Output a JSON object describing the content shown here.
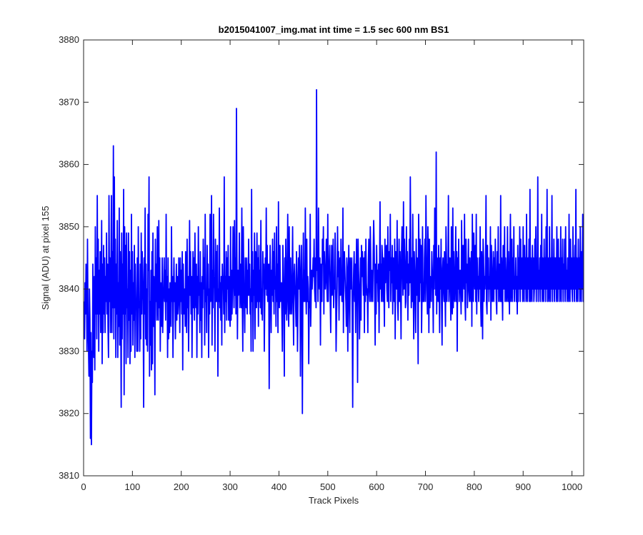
{
  "chart_data": {
    "type": "line",
    "title": "b2015041007_img.mat int time = 1.5 sec  600 nm BS1",
    "xlabel": "Track Pixels",
    "ylabel": "Signal (ADU) at pixel 155",
    "xlim": [
      0,
      1024
    ],
    "ylim": [
      3810,
      3880
    ],
    "xticks": [
      0,
      100,
      200,
      300,
      400,
      500,
      600,
      700,
      800,
      900,
      1000
    ],
    "yticks": [
      3810,
      3820,
      3830,
      3840,
      3850,
      3860,
      3870,
      3880
    ],
    "grid": false,
    "line_color": "#0000ff",
    "series": [
      {
        "x_start": 1,
        "x_step": 1,
        "values": [
          3838,
          3832,
          3841,
          3836,
          3844,
          3839,
          3830,
          3848,
          3835,
          3831,
          3826,
          3840,
          3835,
          3816,
          3833,
          3815,
          3830,
          3825,
          3844,
          3835,
          3829,
          3842,
          3827,
          3850,
          3836,
          3845,
          3832,
          3855,
          3836,
          3848,
          3830,
          3843,
          3836,
          3846,
          3833,
          3840,
          3851,
          3828,
          3844,
          3833,
          3847,
          3836,
          3845,
          3833,
          3842,
          3838,
          3849,
          3836,
          3844,
          3834,
          3829,
          3855,
          3838,
          3845,
          3833,
          3842,
          3855,
          3833,
          3846,
          3837,
          3863,
          3832,
          3858,
          3837,
          3848,
          3829,
          3844,
          3836,
          3851,
          3829,
          3841,
          3834,
          3853,
          3831,
          3846,
          3837,
          3821,
          3849,
          3832,
          3844,
          3836,
          3856,
          3823,
          3850,
          3836,
          3847,
          3828,
          3849,
          3837,
          3840,
          3829,
          3849,
          3835,
          3846,
          3828,
          3843,
          3830,
          3852,
          3836,
          3846,
          3831,
          3841,
          3835,
          3847,
          3829,
          3844,
          3838,
          3838,
          3830,
          3845,
          3830,
          3850,
          3837,
          3838,
          3830,
          3844,
          3832,
          3849,
          3836,
          3846,
          3842,
          3838,
          3821,
          3845,
          3836,
          3853,
          3832,
          3844,
          3831,
          3840,
          3830,
          3852,
          3843,
          3858,
          3826,
          3838,
          3831,
          3843,
          3827,
          3846,
          3828,
          3849,
          3834,
          3842,
          3838,
          3823,
          3848,
          3838,
          3844,
          3835,
          3850,
          3839,
          3835,
          3851,
          3837,
          3845,
          3830,
          3841,
          3840,
          3834,
          3845,
          3833,
          3838,
          3840,
          3845,
          3838,
          3843,
          3835,
          3852,
          3838,
          3842,
          3829,
          3845,
          3832,
          3840,
          3833,
          3841,
          3838,
          3834,
          3850,
          3838,
          3842,
          3829,
          3838,
          3845,
          3838,
          3841,
          3832,
          3838,
          3844,
          3835,
          3842,
          3836,
          3838,
          3845,
          3840,
          3833,
          3845,
          3838,
          3843,
          3836,
          3846,
          3827,
          3844,
          3838,
          3836,
          3840,
          3834,
          3846,
          3839,
          3833,
          3848,
          3837,
          3842,
          3830,
          3838,
          3851,
          3839,
          3846,
          3836,
          3842,
          3829,
          3839,
          3846,
          3837,
          3845,
          3835,
          3849,
          3839,
          3837,
          3844,
          3829,
          3842,
          3836,
          3850,
          3839,
          3841,
          3833,
          3846,
          3835,
          3841,
          3829,
          3842,
          3837,
          3848,
          3840,
          3845,
          3831,
          3852,
          3838,
          3840,
          3833,
          3847,
          3839,
          3844,
          3829,
          3840,
          3836,
          3852,
          3838,
          3840,
          3855,
          3831,
          3843,
          3837,
          3852,
          3842,
          3840,
          3830,
          3848,
          3838,
          3846,
          3838,
          3847,
          3826,
          3840,
          3838,
          3853,
          3837,
          3841,
          3835,
          3842,
          3831,
          3844,
          3840,
          3842,
          3836,
          3858,
          3833,
          3842,
          3838,
          3846,
          3835,
          3845,
          3840,
          3847,
          3835,
          3842,
          3836,
          3834,
          3850,
          3835,
          3843,
          3836,
          3841,
          3850,
          3843,
          3837,
          3851,
          3839,
          3845,
          3836,
          3869,
          3845,
          3832,
          3843,
          3839,
          3840,
          3849,
          3837,
          3844,
          3841,
          3837,
          3853,
          3838,
          3830,
          3850,
          3841,
          3838,
          3833,
          3845,
          3838,
          3837,
          3845,
          3836,
          3843,
          3839,
          3848,
          3839,
          3844,
          3836,
          3840,
          3830,
          3856,
          3838,
          3846,
          3830,
          3843,
          3839,
          3849,
          3832,
          3846,
          3843,
          3837,
          3849,
          3838,
          3845,
          3834,
          3847,
          3838,
          3843,
          3837,
          3851,
          3836,
          3840,
          3835,
          3846,
          3841,
          3844,
          3830,
          3838,
          3845,
          3840,
          3853,
          3839,
          3847,
          3838,
          3842,
          3844,
          3824,
          3836,
          3847,
          3841,
          3833,
          3843,
          3839,
          3848,
          3838,
          3846,
          3836,
          3849,
          3840,
          3842,
          3834,
          3850,
          3838,
          3844,
          3833,
          3854,
          3840,
          3837,
          3847,
          3838,
          3839,
          3841,
          3836,
          3830,
          3847,
          3842,
          3838,
          3826,
          3845,
          3836,
          3848,
          3841,
          3835,
          3843,
          3852,
          3838,
          3834,
          3850,
          3840,
          3836,
          3845,
          3839,
          3836,
          3841,
          3850,
          3838,
          3831,
          3842,
          3844,
          3840,
          3838,
          3834,
          3846,
          3841,
          3830,
          3838,
          3845,
          3840,
          3847,
          3843,
          3826,
          3838,
          3847,
          3836,
          3820,
          3840,
          3849,
          3838,
          3843,
          3838,
          3853,
          3840,
          3836,
          3848,
          3838,
          3842,
          3840,
          3828,
          3838,
          3837,
          3852,
          3834,
          3839,
          3843,
          3840,
          3842,
          3845,
          3842,
          3848,
          3840,
          3838,
          3845,
          3837,
          3872,
          3843,
          3845,
          3838,
          3853,
          3842,
          3840,
          3845,
          3831,
          3844,
          3841,
          3838,
          3848,
          3844,
          3850,
          3836,
          3846,
          3842,
          3840,
          3843,
          3848,
          3841,
          3838,
          3852,
          3838,
          3843,
          3844,
          3847,
          3838,
          3833,
          3842,
          3847,
          3839,
          3841,
          3848,
          3837,
          3840,
          3840,
          3849,
          3842,
          3830,
          3836,
          3840,
          3850,
          3842,
          3846,
          3835,
          3843,
          3845,
          3839,
          3848,
          3841,
          3838,
          3838,
          3853,
          3833,
          3844,
          3846,
          3843,
          3840,
          3838,
          3834,
          3845,
          3843,
          3830,
          3841,
          3847,
          3838,
          3833,
          3845,
          3840,
          3841,
          3845,
          3836,
          3821,
          3838,
          3843,
          3846,
          3838,
          3844,
          3833,
          3842,
          3848,
          3840,
          3825,
          3848,
          3843,
          3840,
          3832,
          3838,
          3845,
          3835,
          3847,
          3842,
          3846,
          3843,
          3839,
          3845,
          3833,
          3846,
          3838,
          3848,
          3841,
          3839,
          3840,
          3833,
          3844,
          3848,
          3840,
          3838,
          3850,
          3845,
          3838,
          3843,
          3842,
          3838,
          3846,
          3851,
          3847,
          3840,
          3831,
          3844,
          3836,
          3847,
          3841,
          3843,
          3838,
          3844,
          3833,
          3843,
          3854,
          3840,
          3844,
          3838,
          3847,
          3845,
          3838,
          3845,
          3840,
          3834,
          3848,
          3841,
          3845,
          3847,
          3840,
          3838,
          3850,
          3842,
          3837,
          3846,
          3843,
          3852,
          3838,
          3845,
          3841,
          3847,
          3836,
          3845,
          3844,
          3838,
          3848,
          3832,
          3846,
          3841,
          3840,
          3851,
          3838,
          3835,
          3843,
          3848,
          3838,
          3846,
          3841,
          3832,
          3846,
          3850,
          3843,
          3839,
          3854,
          3840,
          3848,
          3844,
          3837,
          3838,
          3850,
          3841,
          3846,
          3835,
          3844,
          3839,
          3848,
          3841,
          3858,
          3844,
          3837,
          3845,
          3838,
          3852,
          3840,
          3832,
          3846,
          3843,
          3838,
          3833,
          3848,
          3839,
          3845,
          3840,
          3828,
          3852,
          3845,
          3838,
          3848,
          3841,
          3847,
          3833,
          3839,
          3850,
          3838,
          3841,
          3838,
          3845,
          3848,
          3838,
          3855,
          3845,
          3840,
          3836,
          3850,
          3845,
          3833,
          3848,
          3837,
          3842,
          3841,
          3838,
          3846,
          3843,
          3840,
          3833,
          3847,
          3840,
          3853,
          3850,
          3839,
          3862,
          3836,
          3845,
          3843,
          3838,
          3847,
          3840,
          3833,
          3845,
          3840,
          3848,
          3838,
          3831,
          3843,
          3845,
          3840,
          3838,
          3846,
          3840,
          3834,
          3850,
          3845,
          3838,
          3844,
          3840,
          3855,
          3838,
          3842,
          3845,
          3840,
          3835,
          3850,
          3838,
          3836,
          3853,
          3837,
          3846,
          3840,
          3838,
          3843,
          3850,
          3838,
          3846,
          3830,
          3845,
          3840,
          3848,
          3838,
          3841,
          3843,
          3840,
          3836,
          3851,
          3842,
          3838,
          3847,
          3845,
          3840,
          3852,
          3838,
          3835,
          3848,
          3841,
          3844,
          3837,
          3842,
          3848,
          3840,
          3838,
          3845,
          3840,
          3838,
          3846,
          3834,
          3852,
          3840,
          3838,
          3849,
          3843,
          3840,
          3847,
          3838,
          3852,
          3836,
          3845,
          3840,
          3842,
          3838,
          3845,
          3840,
          3850,
          3838,
          3834,
          3846,
          3842,
          3832,
          3848,
          3845,
          3838,
          3842,
          3840,
          3844,
          3855,
          3838,
          3836,
          3847,
          3840,
          3845,
          3838,
          3842,
          3840,
          3850,
          3835,
          3847,
          3843,
          3838,
          3840,
          3846,
          3838,
          3845,
          3840,
          3848,
          3843,
          3838,
          3836,
          3846,
          3840,
          3850,
          3838,
          3844,
          3842,
          3838,
          3855,
          3838,
          3845,
          3840,
          3835,
          3847,
          3840,
          3840,
          3850,
          3838,
          3845,
          3842,
          3838,
          3840,
          3850,
          3838,
          3846,
          3840,
          3836,
          3845,
          3852,
          3838,
          3840,
          3848,
          3838,
          3845,
          3840,
          3850,
          3838,
          3842,
          3840,
          3845,
          3838,
          3842,
          3836,
          3847,
          3838,
          3845,
          3840,
          3850,
          3838,
          3848,
          3840,
          3840,
          3845,
          3838,
          3850,
          3840,
          3838,
          3847,
          3840,
          3845,
          3838,
          3852,
          3840,
          3838,
          3845,
          3840,
          3848,
          3838,
          3856,
          3838,
          3845,
          3840,
          3838,
          3847,
          3840,
          3845,
          3838,
          3840,
          3848,
          3840,
          3850,
          3838,
          3845,
          3840,
          3858,
          3838,
          3843,
          3840,
          3845,
          3838,
          3847,
          3840,
          3852,
          3838,
          3845,
          3840,
          3838,
          3848,
          3840,
          3845,
          3838,
          3850,
          3840,
          3856,
          3838,
          3845,
          3840,
          3838,
          3850,
          3840,
          3838,
          3845,
          3840,
          3855,
          3838,
          3845,
          3840,
          3848,
          3838,
          3845,
          3840,
          3845,
          3838,
          3850,
          3840,
          3838,
          3848,
          3840,
          3845,
          3838,
          3840,
          3850,
          3838,
          3845,
          3840,
          3848,
          3838,
          3844,
          3840,
          3848,
          3838,
          3850,
          3840,
          3843,
          3838,
          3845,
          3840,
          3838,
          3852,
          3840,
          3838,
          3848,
          3840,
          3845,
          3840,
          3838,
          3850,
          3840,
          3845,
          3838,
          3847,
          3840,
          3856,
          3838,
          3845,
          3840,
          3838,
          3848,
          3840,
          3845,
          3838,
          3850,
          3840,
          3838,
          3846,
          3840,
          3852,
          3838,
          3845,
          3840,
          3838,
          3848,
          3840,
          3852,
          3838,
          3845,
          3840,
          3838,
          3850,
          3840,
          3845,
          3838,
          3848,
          3840,
          3845,
          3838,
          3852,
          3840,
          3838,
          3845,
          3840,
          3850,
          3838,
          3845,
          3840,
          3857
        ]
      }
    ]
  }
}
